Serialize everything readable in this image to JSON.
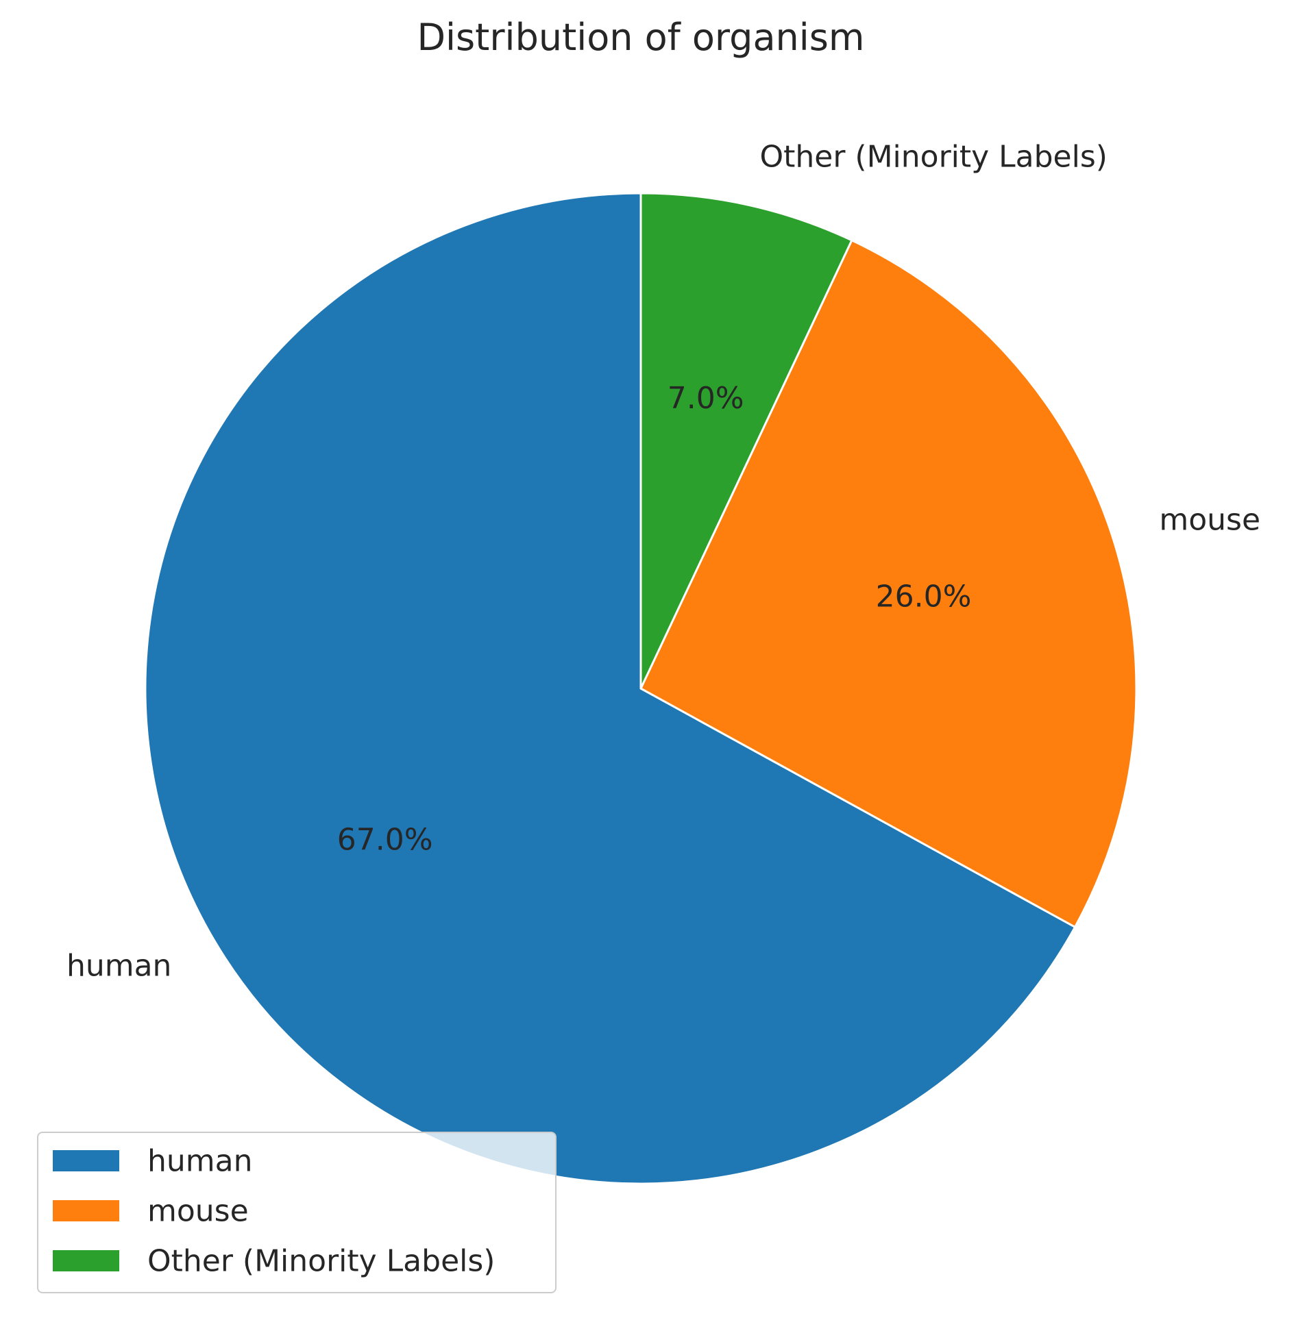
{
  "chart_data": {
    "type": "pie",
    "title": "Distribution of organism",
    "categories": [
      "human",
      "mouse",
      "Other (Minority Labels)"
    ],
    "values": [
      67.0,
      26.0,
      7.0
    ],
    "value_labels": [
      "67.0%",
      "26.0%",
      "7.0%"
    ],
    "colors": [
      "#1f77b4",
      "#ff7f0e",
      "#2ca02c"
    ],
    "legend": {
      "position": "lower-left",
      "entries": [
        "human",
        "mouse",
        "Other (Minority Labels)"
      ]
    }
  }
}
